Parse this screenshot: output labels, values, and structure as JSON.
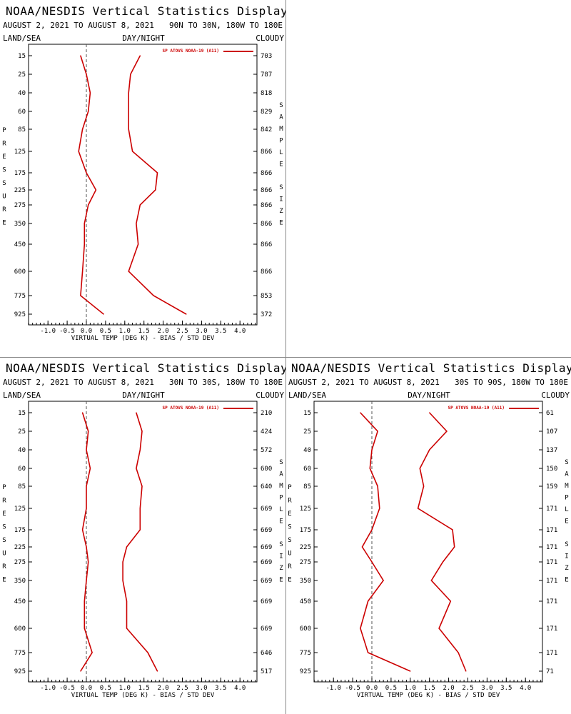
{
  "colors": {
    "series": "#cc0000",
    "axis": "#000000",
    "zero_line": "#555555",
    "divider": "#888888"
  },
  "common": {
    "title": "NOAA/NESDIS Vertical Statistics Display",
    "date_range": "AUGUST 2, 2021 TO AUGUST 8, 2021",
    "land_sea": "LAND/SEA",
    "day_night": "DAY/NIGHT",
    "cloudy": "CLOUDY",
    "legend": "SP ATOVS NOAA-19 (A11)",
    "xlabel": "VIRTUAL TEMP (DEG K) - BIAS / STD DEV",
    "left_axis_word": "PRESSURE",
    "right_axis_word": "SAMPLE SIZE",
    "xtick_labels": [
      "-1.0",
      "-0.5",
      "0.0",
      "0.5",
      "1.0",
      "1.5",
      "2.0",
      "2.5",
      "3.0",
      "3.5",
      "4.0"
    ],
    "pressure_levels": [
      "15",
      "25",
      "40",
      "60",
      "85",
      "125",
      "175",
      "225",
      "275",
      "350",
      "450",
      "600",
      "775",
      "925"
    ]
  },
  "chart_data": [
    {
      "type": "line",
      "region": "90N TO 30N, 180W TO 180E",
      "xlim": [
        -1.5,
        4.5
      ],
      "y": [
        15,
        25,
        40,
        60,
        85,
        125,
        175,
        225,
        275,
        350,
        450,
        600,
        775,
        925
      ],
      "series": [
        {
          "name": "bias",
          "values": [
            -0.15,
            0.0,
            0.1,
            0.05,
            -0.1,
            -0.2,
            0.0,
            0.25,
            0.05,
            -0.05,
            -0.05,
            -0.1,
            -0.15,
            0.45
          ]
        },
        {
          "name": "std dev",
          "values": [
            1.4,
            1.15,
            1.1,
            1.1,
            1.1,
            1.2,
            1.85,
            1.8,
            1.4,
            1.3,
            1.35,
            1.1,
            1.75,
            2.6
          ]
        }
      ],
      "sample_sizes": [
        "703",
        "787",
        "818",
        "829",
        "842",
        "866",
        "866",
        "866",
        "866",
        "866",
        "866",
        "866",
        "853",
        "372"
      ]
    },
    {
      "type": "line",
      "region": "30N TO 30S, 180W TO 180E",
      "xlim": [
        -1.5,
        4.5
      ],
      "y": [
        15,
        25,
        40,
        60,
        85,
        125,
        175,
        225,
        275,
        350,
        450,
        600,
        775,
        925
      ],
      "series": [
        {
          "name": "bias",
          "values": [
            -0.1,
            0.05,
            0.0,
            0.1,
            0.0,
            0.0,
            -0.1,
            0.0,
            0.05,
            0.0,
            -0.05,
            -0.05,
            0.15,
            -0.15
          ]
        },
        {
          "name": "std dev",
          "values": [
            1.3,
            1.45,
            1.4,
            1.3,
            1.45,
            1.4,
            1.4,
            1.05,
            0.95,
            0.95,
            1.05,
            1.05,
            1.6,
            1.85
          ]
        }
      ],
      "sample_sizes": [
        "210",
        "424",
        "572",
        "600",
        "640",
        "669",
        "669",
        "669",
        "669",
        "669",
        "669",
        "669",
        "646",
        "517"
      ]
    },
    {
      "type": "line",
      "region": "30S TO 90S, 180W TO 180E",
      "xlim": [
        -1.5,
        4.5
      ],
      "y": [
        15,
        25,
        40,
        60,
        85,
        125,
        175,
        225,
        275,
        350,
        450,
        600,
        775,
        925
      ],
      "series": [
        {
          "name": "bias",
          "values": [
            -0.3,
            0.15,
            0.0,
            -0.05,
            0.15,
            0.2,
            0.0,
            -0.25,
            0.0,
            0.3,
            -0.1,
            -0.3,
            -0.1,
            1.0
          ]
        },
        {
          "name": "std dev",
          "values": [
            1.5,
            1.95,
            1.5,
            1.25,
            1.35,
            1.2,
            2.1,
            2.15,
            1.85,
            1.55,
            2.05,
            1.75,
            2.25,
            2.45
          ]
        }
      ],
      "sample_sizes": [
        "61",
        "107",
        "137",
        "150",
        "159",
        "171",
        "171",
        "171",
        "171",
        "171",
        "171",
        "171",
        "171",
        "71"
      ]
    }
  ]
}
